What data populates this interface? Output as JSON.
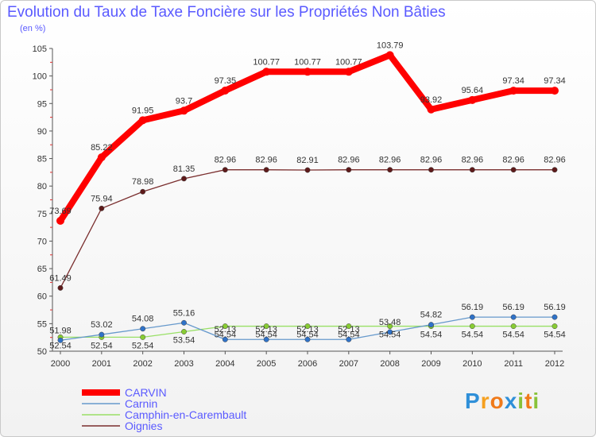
{
  "header": {
    "title": "Evolution du Taux de Taxe Foncière sur les Propriétés Non Bâties",
    "unit": "(en %)"
  },
  "logo": {
    "letters": [
      "P",
      "r",
      "o",
      "x",
      "i",
      "t",
      "i"
    ]
  },
  "chart_data": {
    "type": "line",
    "title": "Evolution du Taux de Taxe Foncière sur les Propriétés Non Bâties",
    "ylabel": "(en %)",
    "xlabel": "",
    "ylim": [
      50,
      105
    ],
    "yticks": [
      50,
      55,
      60,
      65,
      70,
      75,
      80,
      85,
      90,
      95,
      100,
      105
    ],
    "categories": [
      "2000",
      "2001",
      "2002",
      "2003",
      "2004",
      "2005",
      "2006",
      "2007",
      "2008",
      "2009",
      "2010",
      "2011",
      "2012"
    ],
    "legend_position": "bottom-left",
    "series": [
      {
        "name": "CARVIN",
        "color": "#ff0000",
        "marker": "#ff0000",
        "values": [
          73.69,
          85.22,
          91.95,
          93.7,
          97.35,
          100.77,
          100.77,
          100.77,
          103.79,
          93.92,
          95.64,
          97.34,
          97.34
        ],
        "labels": [
          "73.69",
          "85.22",
          "91.95",
          "93.7",
          "97.35",
          "100.77",
          "100.77",
          "100.77",
          "103.79",
          "93.92",
          "95.64",
          "97.34",
          "97.34"
        ]
      },
      {
        "name": "Carnin",
        "color": "#6699cc",
        "marker": "#2f72c8",
        "values": [
          51.98,
          53.02,
          54.08,
          55.16,
          52.13,
          52.13,
          52.13,
          52.13,
          53.48,
          54.82,
          56.19,
          56.19,
          56.19
        ],
        "labels": [
          "51.98",
          "53.02",
          "54.08",
          "55.16",
          "52.13",
          "52.13",
          "52.13",
          "52.13",
          "53.48",
          "54.82",
          "56.19",
          "56.19",
          "56.19"
        ]
      },
      {
        "name": "Camphin-en-Carembault",
        "color": "#99e066",
        "marker": "#88cc33",
        "values": [
          52.54,
          52.54,
          52.54,
          53.54,
          54.54,
          54.54,
          54.54,
          54.54,
          54.54,
          54.54,
          54.54,
          54.54,
          54.54
        ],
        "labels": [
          "52.54",
          "52.54",
          "52.54",
          "53.54",
          "54.54",
          "54.54",
          "54.54",
          "54.54",
          "54.54",
          "54.54",
          "54.54",
          "54.54",
          "54.54"
        ]
      },
      {
        "name": "Oignies",
        "color": "#7a2e2e",
        "marker": "#5e1a1a",
        "values": [
          61.49,
          75.94,
          78.98,
          81.35,
          82.96,
          82.96,
          82.91,
          82.96,
          82.96,
          82.96,
          82.96,
          82.96,
          82.96
        ],
        "labels": [
          "61.49",
          "75.94",
          "78.98",
          "81.35",
          "82.96",
          "82.96",
          "82.91",
          "82.96",
          "82.96",
          "82.96",
          "82.96",
          "82.96",
          "82.96"
        ]
      }
    ]
  }
}
